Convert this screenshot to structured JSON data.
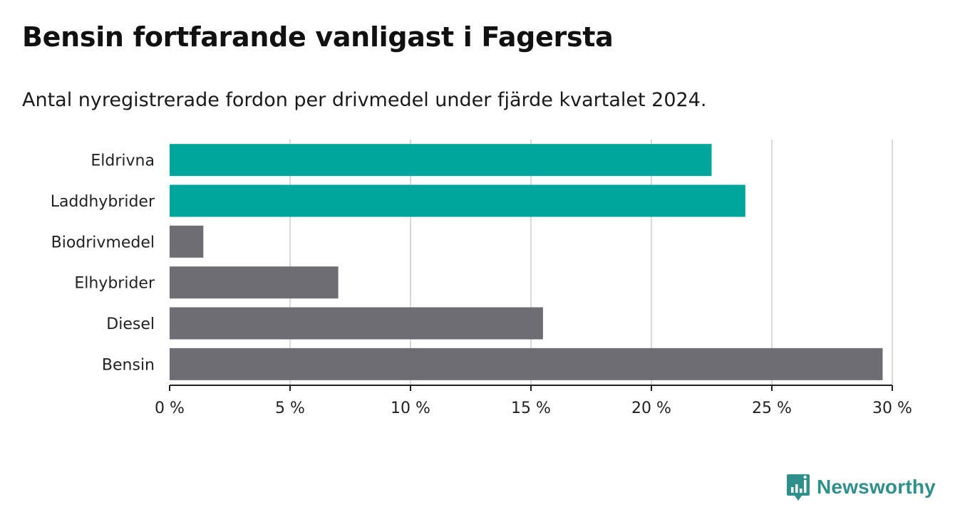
{
  "title": "Bensin fortfarande vanligast i Fagersta",
  "subtitle": "Antal nyregistrerade fordon per drivmedel under fjärde kvartalet 2024.",
  "brand": {
    "name": "Newsworthy",
    "color": "#2f8f8a"
  },
  "colors": {
    "highlight": "#00a59b",
    "other": "#6e6d73",
    "grid": "#d9d9d9",
    "axis": "#222222"
  },
  "chart_data": {
    "type": "bar",
    "orientation": "horizontal",
    "categories": [
      "Eldrivna",
      "Laddhybrider",
      "Biodrivmedel",
      "Elhybrider",
      "Diesel",
      "Bensin"
    ],
    "values": [
      22.5,
      23.9,
      1.4,
      7.0,
      15.5,
      29.6
    ],
    "highlighted": [
      true,
      true,
      false,
      false,
      false,
      false
    ],
    "xlim": [
      0,
      30
    ],
    "xticks": [
      0,
      5,
      10,
      15,
      20,
      25,
      30
    ],
    "tick_labels": [
      "0 %",
      "5 %",
      "10 %",
      "15 %",
      "20 %",
      "25 %",
      "30 %"
    ],
    "xlabel": "",
    "ylabel": "",
    "grid": true,
    "legend": "none"
  }
}
